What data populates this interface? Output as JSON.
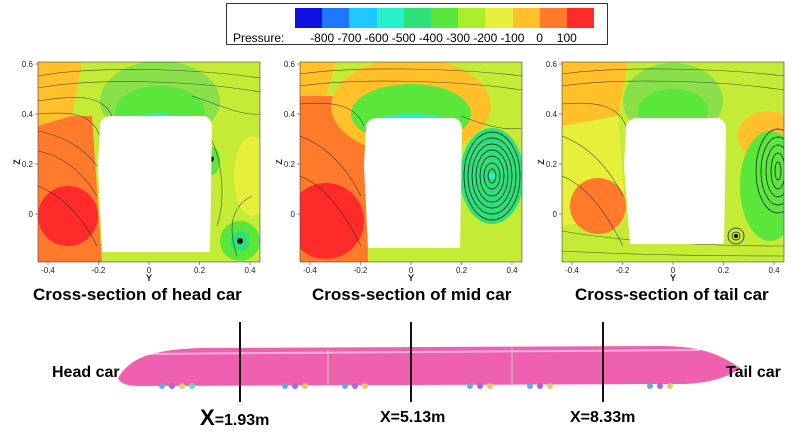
{
  "legend": {
    "title": "Pressure:",
    "ticks": [
      "-800",
      "-700",
      "-600",
      "-500",
      "-400",
      "-300",
      "-200",
      "-100",
      "0",
      "100"
    ],
    "colors": [
      "#1010e0",
      "#1e78ff",
      "#1ec8ff",
      "#28f0c8",
      "#2de07a",
      "#5ae63a",
      "#a8ee2a",
      "#e6f03a",
      "#ffc02a",
      "#ff7a2a",
      "#ff2a2a"
    ]
  },
  "panels": [
    {
      "caption": "Cross-section of head car",
      "axis_y_label": "Y",
      "axis_z_label": "Z",
      "y_ticks": [
        "-0.4",
        "-0.2",
        "0",
        "0.2",
        "0.4"
      ],
      "z_ticks": [
        "0.6",
        "0.4",
        "0.2",
        "0"
      ]
    },
    {
      "caption": "Cross-section of mid car",
      "axis_y_label": "Y",
      "axis_z_label": "Z",
      "y_ticks": [
        "-0.4",
        "-0.2",
        "0",
        "0.2",
        "0.4"
      ],
      "z_ticks": [
        "0.6",
        "0.4",
        "0.2",
        "0"
      ]
    },
    {
      "caption": "Cross-section of tail car",
      "axis_y_label": "Y",
      "axis_z_label": "Z",
      "y_ticks": [
        "-0.4",
        "-0.2",
        "0",
        "0.2",
        "0.4"
      ],
      "z_ticks": [
        "0.6",
        "0.4",
        "0.2",
        "0"
      ]
    }
  ],
  "train": {
    "head_label": "Head car",
    "tail_label": "Tail car",
    "body_color": "#f060b0",
    "sections": [
      {
        "x_prefix": "X",
        "x_value": "=1.93m"
      },
      {
        "x_prefix": "X",
        "x_value": "=5.13m"
      },
      {
        "x_prefix": "X",
        "x_value": "=8.33m"
      }
    ]
  }
}
